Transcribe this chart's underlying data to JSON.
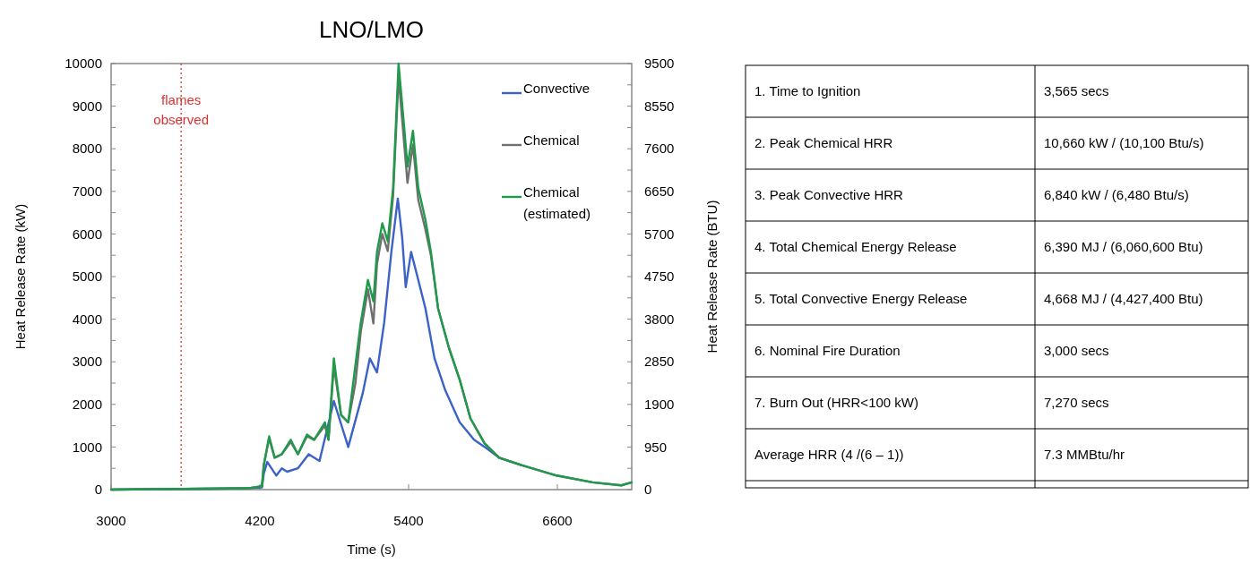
{
  "chart_data": [
    {
      "type": "line",
      "title": "LNO/LMO",
      "xlabel": "Time (s)",
      "ylabel": "Heat Release Rate (kW)",
      "y2label": "Heat Release Rate (BTU)",
      "xlim": [
        3000,
        7200
      ],
      "xticks": [
        3000,
        4200,
        5400,
        6600
      ],
      "ylim": [
        0,
        10000
      ],
      "yticks": [
        0,
        1000,
        2000,
        3000,
        4000,
        5000,
        6000,
        7000,
        8000,
        9000,
        10000
      ],
      "y2lim": [
        0,
        9500
      ],
      "y2ticks": [
        0,
        950,
        1900,
        2850,
        3800,
        4750,
        5700,
        6650,
        7600,
        8550,
        9500
      ],
      "legend": "top right",
      "grid": false,
      "ref_lines": [
        {
          "axis": "x",
          "value": 3565,
          "label": "flames observed",
          "color": "#e03030",
          "line_style": "dotted"
        }
      ],
      "series": [
        {
          "name": "Convective",
          "color": "#3a62c8",
          "x": [
            3000,
            4100,
            4217,
            4232,
            4260,
            4333,
            4377,
            4420,
            4507,
            4594,
            4681,
            4797,
            4913,
            5029,
            5087,
            5145,
            5203,
            5261,
            5313,
            5348,
            5377,
            5420,
            5478,
            5536,
            5609,
            5696,
            5812,
            5928,
            6014,
            6130,
            6304
          ],
          "values": [
            0,
            30,
            50,
            380,
            650,
            330,
            500,
            420,
            500,
            830,
            670,
            2080,
            1000,
            2250,
            3080,
            2750,
            3920,
            5580,
            6830,
            5920,
            4750,
            5580,
            4920,
            4250,
            3080,
            2330,
            1580,
            1170,
            1000,
            750,
            580
          ]
        },
        {
          "name": "Chemical",
          "color": "#707070",
          "x": [
            3000,
            4100,
            4217,
            4232,
            4275,
            4319,
            4377,
            4449,
            4507,
            4580,
            4638,
            4725,
            4754,
            4797,
            4855,
            4913,
            4971,
            5014,
            5072,
            5116,
            5145,
            5188,
            5232,
            5275,
            5319,
            5362,
            5391,
            5435,
            5478,
            5536,
            5580,
            5638,
            5725,
            5812,
            5899,
            6014,
            6130,
            6304,
            6594,
            6884,
            7116,
            7200
          ],
          "values": [
            0,
            30,
            80,
            580,
            1200,
            750,
            830,
            1120,
            830,
            1250,
            1170,
            1500,
            1170,
            2900,
            1750,
            1580,
            2500,
            3700,
            4700,
            3900,
            5300,
            6000,
            5600,
            6900,
            9700,
            8200,
            7200,
            8100,
            6800,
            6100,
            5500,
            4250,
            3330,
            2580,
            1670,
            1080,
            750,
            580,
            330,
            170,
            100,
            170
          ]
        },
        {
          "name": "Chemical (estimated)",
          "color": "#1f9a4a",
          "x": [
            3000,
            4100,
            4217,
            4232,
            4275,
            4319,
            4377,
            4449,
            4507,
            4580,
            4638,
            4725,
            4754,
            4797,
            4855,
            4913,
            4971,
            5014,
            5072,
            5116,
            5145,
            5188,
            5232,
            5275,
            5319,
            5362,
            5391,
            5435,
            5478,
            5536,
            5580,
            5638,
            5725,
            5812,
            5899,
            6014,
            6130,
            6304,
            6594,
            6884,
            7116,
            7200
          ],
          "values": [
            0,
            30,
            80,
            580,
            1250,
            750,
            830,
            1170,
            830,
            1290,
            1170,
            1580,
            1170,
            3080,
            1750,
            1580,
            2920,
            3920,
            4920,
            4420,
            5580,
            6250,
            5830,
            7080,
            10000,
            8580,
            7580,
            8420,
            7080,
            6330,
            5580,
            4250,
            3330,
            2580,
            1670,
            1080,
            750,
            580,
            330,
            170,
            100,
            170
          ]
        }
      ]
    },
    {
      "type": "other",
      "categories": [
        "1. Time to Ignition",
        "2. Peak Chemical HRR",
        "3. Peak Convective HRR",
        "4. Total Chemical Energy Release",
        "5. Total Convective Energy Release",
        "6. Nominal Fire Duration",
        "7. Burn Out (HRR<100 kW)",
        "Average HRR (4 /(6 – 1))"
      ],
      "value_labels": [
        "3,565 secs",
        "10,660 kW / (10,100 Btu/s)",
        "6,840 kW / (6,480 Btu/s)",
        "6,390 MJ / (6,060,600 Btu)",
        "4,668 MJ / (4,427,400 Btu)",
        "3,000 secs",
        "7,270 secs",
        "7.3 MMBtu/hr"
      ]
    }
  ]
}
